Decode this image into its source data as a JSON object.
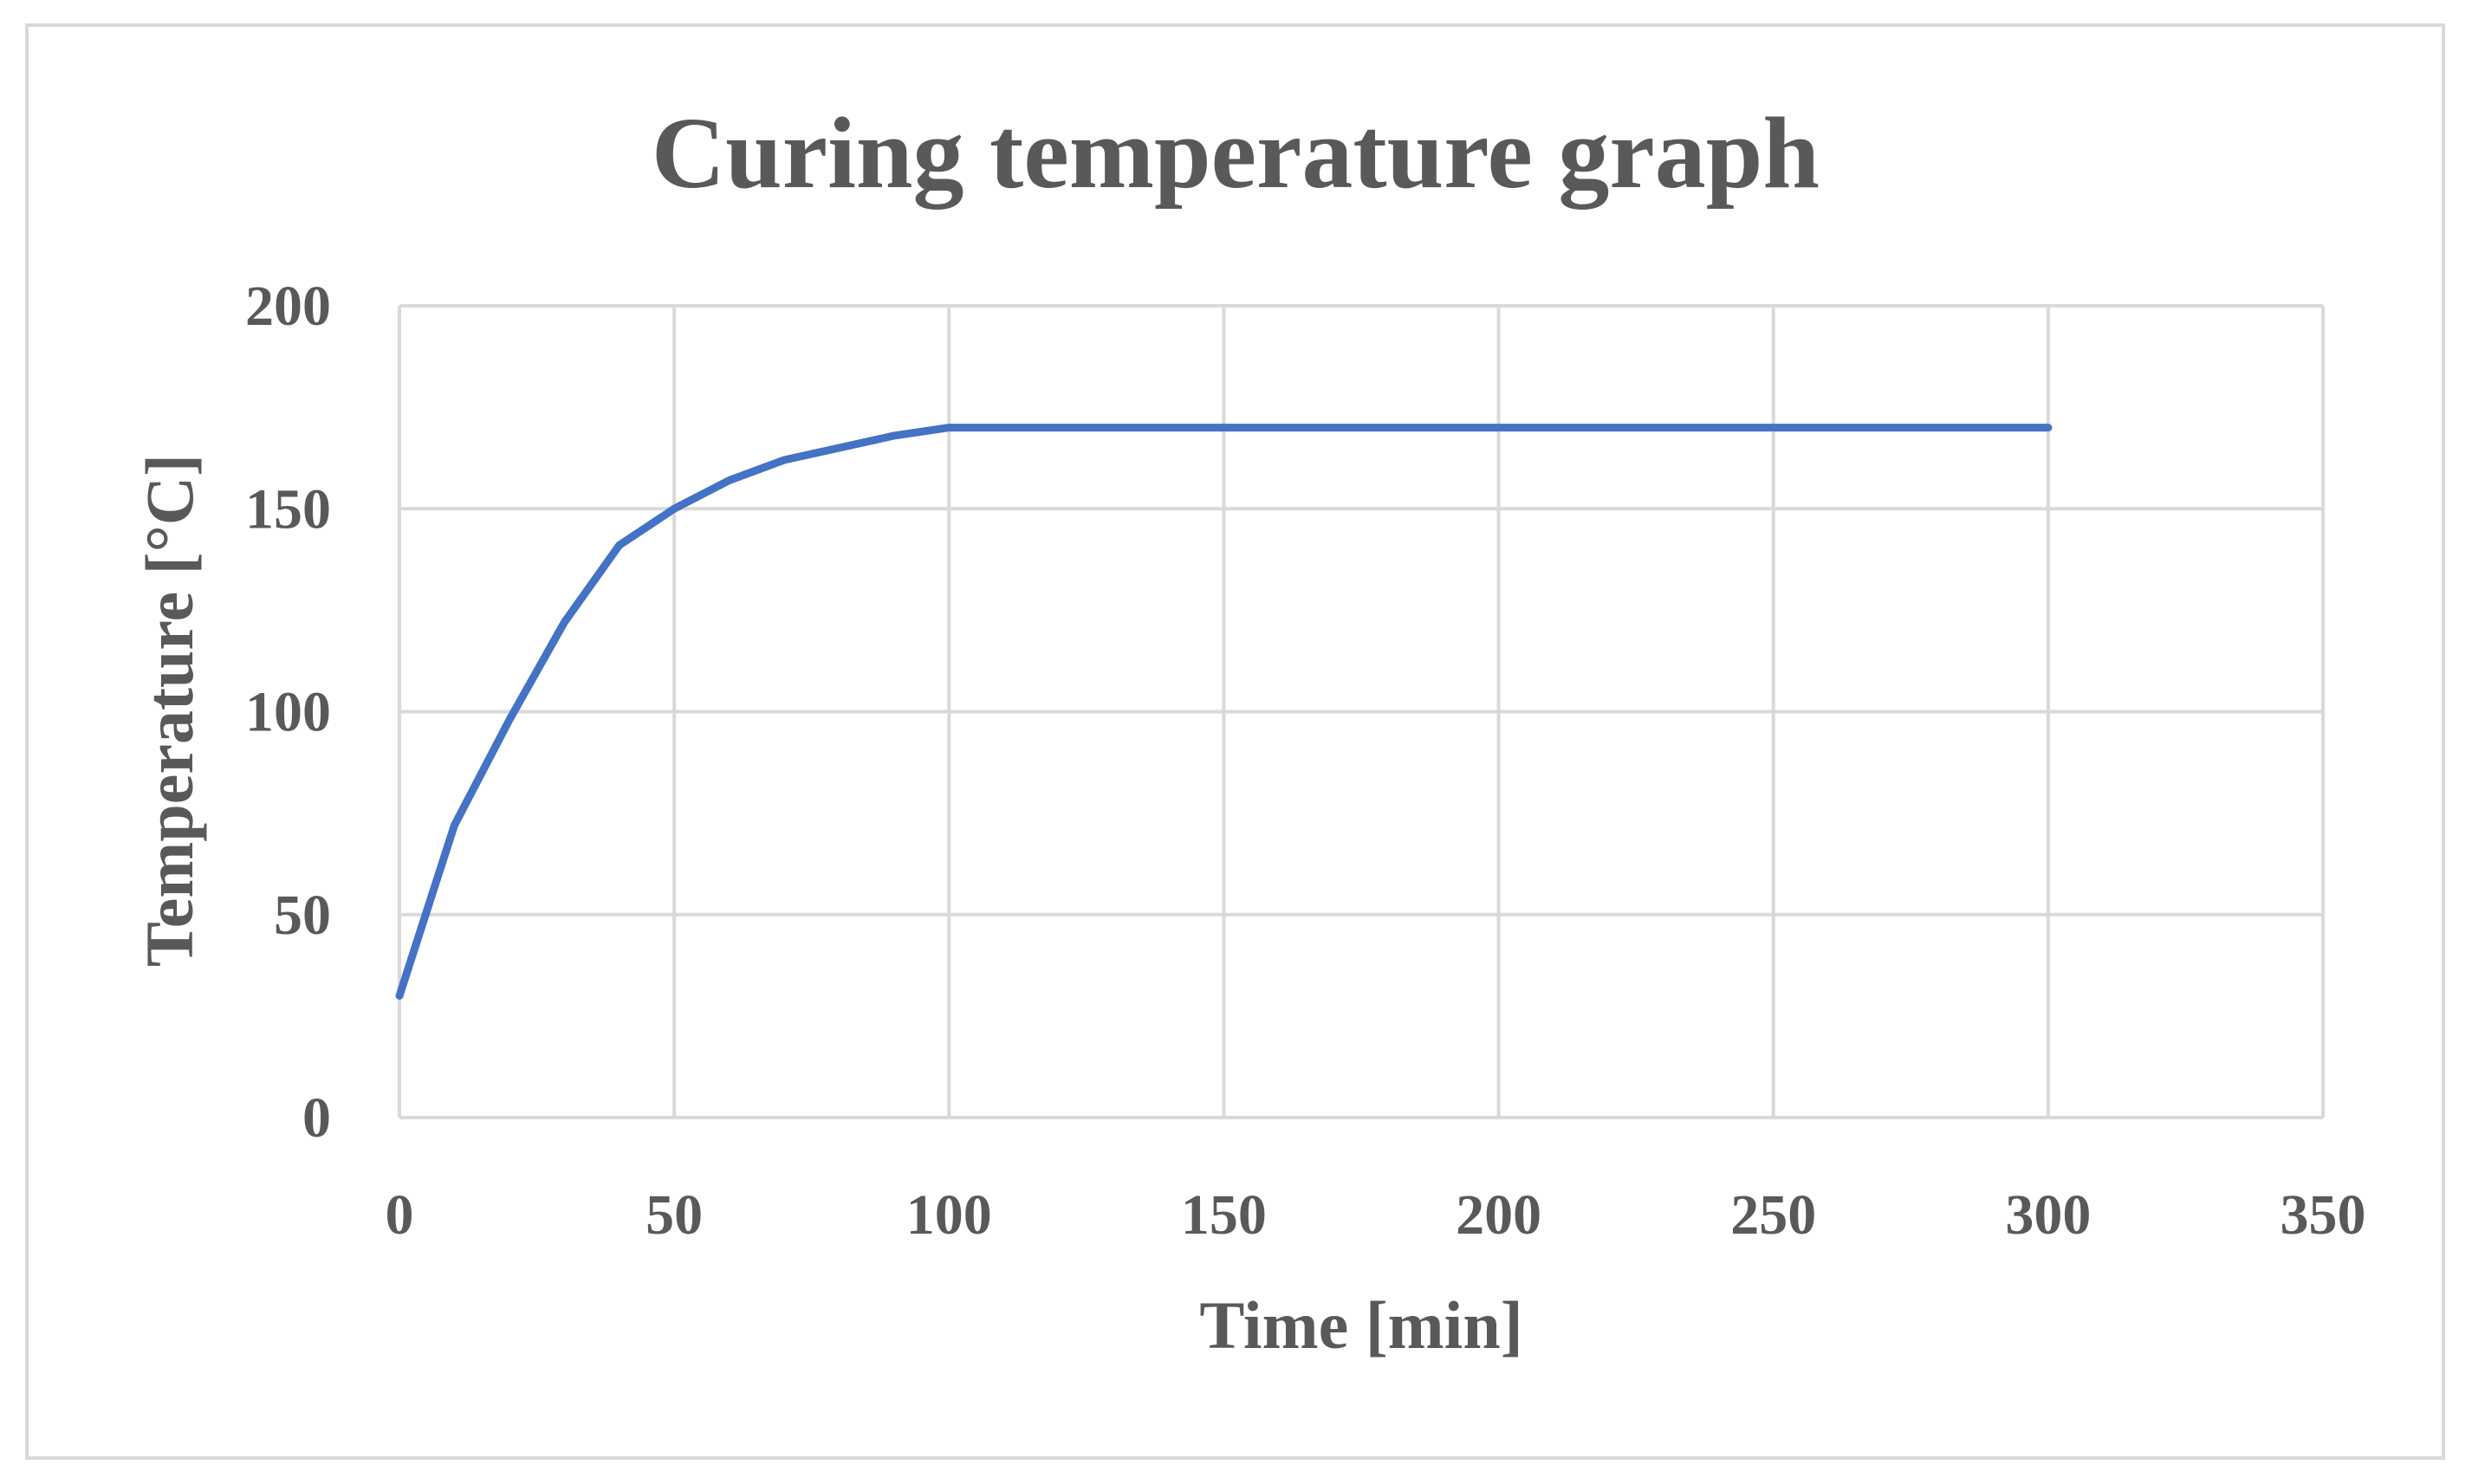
{
  "chart_data": {
    "type": "line",
    "title": "Curing temperature graph",
    "xlabel": "Time [min]",
    "ylabel": "Temperature [°C]",
    "xlim": [
      0,
      350
    ],
    "ylim": [
      0,
      200
    ],
    "xticks": [
      0,
      50,
      100,
      150,
      200,
      250,
      300,
      350
    ],
    "yticks": [
      0,
      50,
      100,
      150,
      200
    ],
    "grid": true,
    "legend": "none",
    "series": [
      {
        "name": "Temperature",
        "color": "#4472c4",
        "x": [
          0,
          10,
          20,
          30,
          40,
          50,
          60,
          70,
          80,
          90,
          100,
          150,
          200,
          250,
          300
        ],
        "y": [
          30,
          72,
          98,
          122,
          141,
          150,
          157,
          162,
          165,
          168,
          170,
          170,
          170,
          170,
          170
        ]
      }
    ]
  }
}
